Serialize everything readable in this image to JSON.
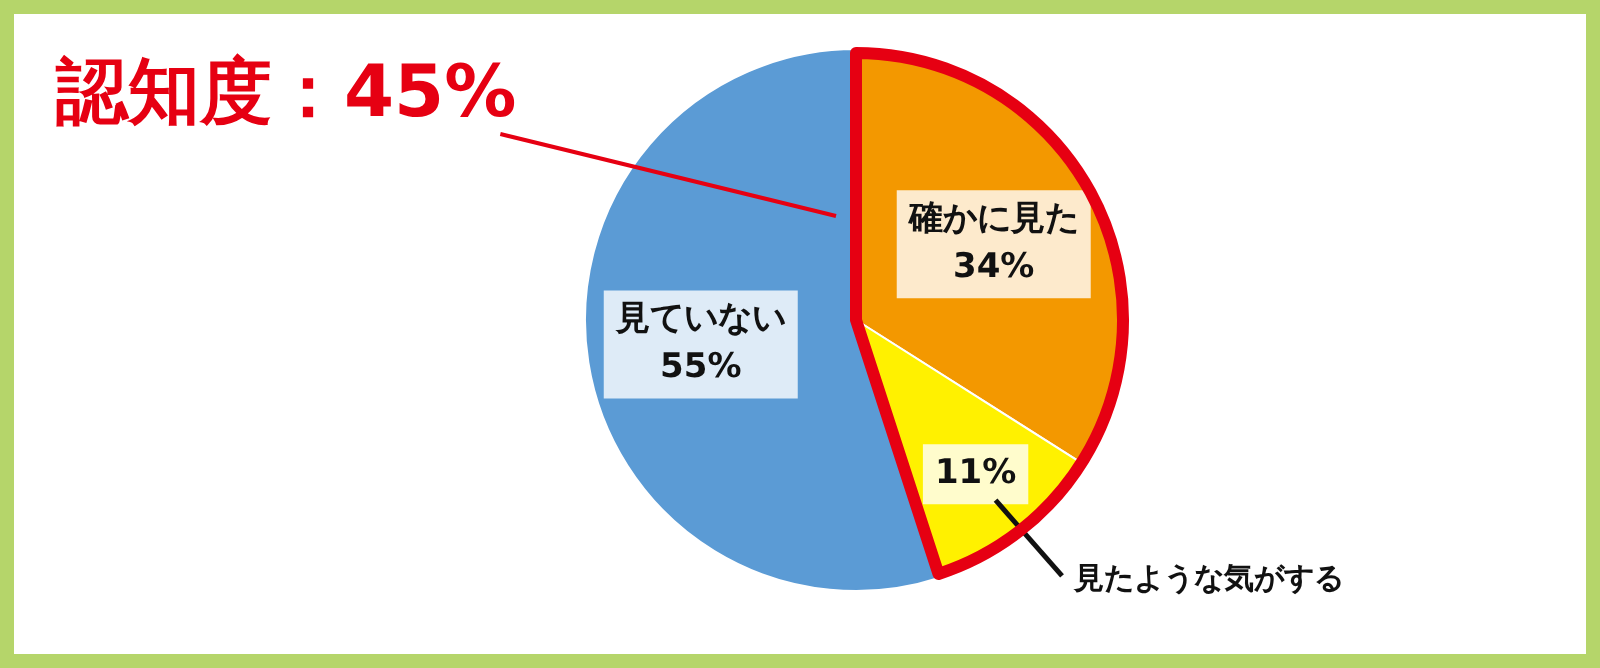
{
  "chart_data": {
    "type": "pie",
    "title": "認知度：45%",
    "categories": [
      "確かに見た",
      "見たような気がする",
      "見ていない"
    ],
    "values": [
      34,
      11,
      55
    ],
    "colors": [
      "#f39800",
      "#fff100",
      "#5b9bd5"
    ],
    "value_labels": [
      "34%",
      "11%",
      "55%"
    ],
    "legend": false
  }
}
